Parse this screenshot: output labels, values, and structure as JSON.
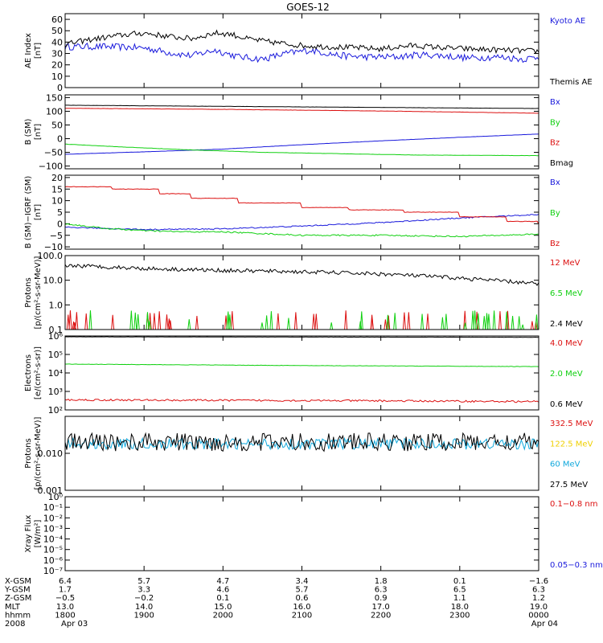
{
  "title": "GOES-12",
  "colors": {
    "black": "#000000",
    "blue": "#1a1adc",
    "red": "#dc1010",
    "green": "#10d010",
    "cyan": "#10a8dc",
    "yellow": "#f0d000"
  },
  "chart_data": [
    {
      "type": "line",
      "name": "ae",
      "ylabel": [
        "AE Index",
        "[nT]"
      ],
      "ylim": [
        0,
        65
      ],
      "yticks": [
        0,
        10,
        20,
        30,
        40,
        50,
        60
      ],
      "yticklabels": [
        "0",
        "10",
        "20",
        "30",
        "40",
        "50",
        "60"
      ],
      "series": [
        {
          "name": "Kyoto AE",
          "color": "#1a1adc",
          "knots": [
            [
              18,
              36
            ],
            [
              18.5,
              36
            ],
            [
              19,
              35
            ],
            [
              19.3,
              31
            ],
            [
              19.6,
              28
            ],
            [
              19.9,
              33
            ],
            [
              20.2,
              27
            ],
            [
              20.5,
              25
            ],
            [
              20.8,
              30
            ],
            [
              21.1,
              33
            ],
            [
              21.5,
              28
            ],
            [
              21.8,
              27
            ],
            [
              22.2,
              27
            ],
            [
              22.5,
              29
            ],
            [
              22.8,
              28
            ],
            [
              23.1,
              26
            ],
            [
              23.5,
              27
            ],
            [
              23.8,
              25
            ],
            [
              24,
              27
            ]
          ],
          "noise": 3
        },
        {
          "name": "Themis AE",
          "color": "#000000",
          "knots": [
            [
              18,
              38
            ],
            [
              18.3,
              42
            ],
            [
              18.7,
              46
            ],
            [
              19,
              48
            ],
            [
              19.3,
              45
            ],
            [
              19.6,
              43
            ],
            [
              19.9,
              48
            ],
            [
              20.1,
              47
            ],
            [
              20.3,
              43
            ],
            [
              20.6,
              40
            ],
            [
              21,
              37
            ],
            [
              21.3,
              36
            ],
            [
              21.7,
              35
            ],
            [
              22,
              34
            ],
            [
              22.4,
              37
            ],
            [
              22.8,
              35
            ],
            [
              23.1,
              34
            ],
            [
              23.5,
              33
            ],
            [
              24,
              32
            ]
          ],
          "noise": 2.5
        }
      ]
    },
    {
      "type": "line",
      "name": "bsm",
      "ylabel": [
        "B (SM)",
        "[nT]"
      ],
      "ylim": [
        -110,
        160
      ],
      "yticks": [
        -100,
        -50,
        0,
        50,
        100,
        150
      ],
      "yticklabels": [
        "−100",
        "−50",
        "0",
        "50",
        "100",
        "150"
      ],
      "series": [
        {
          "name": "Bx",
          "color": "#1a1adc",
          "knots": [
            [
              18,
              -57
            ],
            [
              19,
              -48
            ],
            [
              20,
              -38
            ],
            [
              21,
              -22
            ],
            [
              22,
              -8
            ],
            [
              23,
              5
            ],
            [
              24,
              17
            ]
          ],
          "noise": 0.4
        },
        {
          "name": "By",
          "color": "#10d010",
          "knots": [
            [
              18,
              -20
            ],
            [
              18.7,
              -30
            ],
            [
              19.5,
              -40
            ],
            [
              20.5,
              -50
            ],
            [
              21.5,
              -55
            ],
            [
              22.5,
              -60
            ],
            [
              24,
              -62
            ]
          ],
          "noise": 0.4
        },
        {
          "name": "Bz",
          "color": "#dc1010",
          "knots": [
            [
              18,
              111
            ],
            [
              19,
              109
            ],
            [
              20,
              107
            ],
            [
              21,
              104
            ],
            [
              22,
              101
            ],
            [
              23,
              97
            ],
            [
              24,
              93
            ]
          ],
          "noise": 0.4
        },
        {
          "name": "Bmag",
          "color": "#000000",
          "knots": [
            [
              18,
              122
            ],
            [
              20,
              118
            ],
            [
              22,
              114
            ],
            [
              24,
              110
            ]
          ],
          "noise": 0.3
        }
      ]
    },
    {
      "type": "line",
      "name": "igrf",
      "ylabel": [
        "B (SM)−IGRF (SM)",
        "[nT]"
      ],
      "ylim": [
        -11,
        21
      ],
      "yticks": [
        -10,
        -5,
        0,
        5,
        10,
        15,
        20
      ],
      "yticklabels": [
        "−10",
        "−5",
        "0",
        "5",
        "10",
        "15",
        "20"
      ],
      "series": [
        {
          "name": "Bx",
          "color": "#1a1adc",
          "knots": [
            [
              18,
              -1.5
            ],
            [
              19,
              -2.5
            ],
            [
              20,
              -2.2
            ],
            [
              21,
              -1
            ],
            [
              22,
              0.5
            ],
            [
              23,
              2.5
            ],
            [
              24,
              4
            ]
          ],
          "noise": 0.25
        },
        {
          "name": "By",
          "color": "#10d010",
          "knots": [
            [
              18,
              0
            ],
            [
              18.5,
              -2
            ],
            [
              19,
              -3
            ],
            [
              19.5,
              -3.5
            ],
            [
              20,
              -3.5
            ],
            [
              21,
              -5
            ],
            [
              22,
              -5
            ],
            [
              23,
              -5.5
            ],
            [
              24,
              -4.5
            ]
          ],
          "noise": 0.3
        },
        {
          "name": "Bz",
          "color": "#dc1010",
          "knots": [
            [
              18,
              16
            ],
            [
              18.6,
              15
            ],
            [
              19.2,
              13
            ],
            [
              19.6,
              11
            ],
            [
              20.2,
              9
            ],
            [
              21,
              7
            ],
            [
              21.6,
              6
            ],
            [
              22.3,
              5
            ],
            [
              23,
              3
            ],
            [
              23.6,
              1
            ],
            [
              24,
              0
            ]
          ],
          "step": true,
          "noise": 0.1
        }
      ]
    },
    {
      "type": "line",
      "name": "protons1",
      "scale": "log",
      "ylabel": [
        "Protons",
        "[p/(cm²-s-sr-MeV)]"
      ],
      "ylim": [
        0.1,
        100
      ],
      "yticks": [
        0.1,
        1,
        10,
        100
      ],
      "yticklabels": [
        "0.1",
        "1.0",
        "10.0",
        "100.0"
      ],
      "series": [
        {
          "name": "12 MeV",
          "color": "#dc1010",
          "spikes": true
        },
        {
          "name": "6.5 MeV",
          "color": "#10d010",
          "spikes": true
        },
        {
          "name": "2.4 MeV",
          "color": "#000000",
          "knots": [
            [
              18,
              40
            ],
            [
              19,
              30
            ],
            [
              20,
              25
            ],
            [
              21,
              22
            ],
            [
              22,
              18
            ],
            [
              23,
              12
            ],
            [
              24,
              7
            ]
          ],
          "noise": 0.08
        }
      ]
    },
    {
      "type": "line",
      "name": "electrons",
      "scale": "log",
      "ylabel": [
        "Electrons",
        "[e/(cm²-s-sr)]"
      ],
      "ylim": [
        100,
        1000000
      ],
      "yticks": [
        100,
        1000,
        10000,
        100000,
        1000000
      ],
      "yticklabels": [
        "10²",
        "10³",
        "10⁴",
        "10⁵",
        "10⁶"
      ],
      "series": [
        {
          "name": "4.0 MeV",
          "color": "#dc1010",
          "knots": [
            [
              18,
              350
            ],
            [
              20,
              330
            ],
            [
              22,
              310
            ],
            [
              24,
              280
            ]
          ],
          "noise": 0.05
        },
        {
          "name": "2.0 MeV",
          "color": "#10d010",
          "knots": [
            [
              18,
              30000
            ],
            [
              21,
              25000
            ],
            [
              24,
              22000
            ]
          ],
          "noise": 0.01
        },
        {
          "name": "0.6 MeV",
          "color": "#000000",
          "knots": [
            [
              18,
              900000
            ],
            [
              24,
              850000
            ]
          ],
          "noise": 0.005
        }
      ]
    },
    {
      "type": "line",
      "name": "protons2",
      "scale": "log",
      "ylabel": [
        "Protons",
        "[p/(cm²-s-sr-MeV)]"
      ],
      "ylim": [
        0.001,
        0.1
      ],
      "yticks": [
        0.001,
        0.01,
        0.1
      ],
      "yticklabels": [
        "0.001",
        "0.010",
        ""
      ],
      "series": [
        {
          "name": "332.5 MeV",
          "color": "#dc1010"
        },
        {
          "name": "122.5 MeV",
          "color": "#f0d000"
        },
        {
          "name": "60 MeV",
          "color": "#10a8dc",
          "knots": [
            [
              18,
              0.018
            ],
            [
              24,
              0.018
            ]
          ],
          "noise": 0.15
        },
        {
          "name": "27.5 MeV",
          "color": "#000000",
          "knots": [
            [
              18,
              0.02
            ],
            [
              24,
              0.02
            ]
          ],
          "noise": 0.25
        }
      ]
    },
    {
      "type": "line",
      "name": "xray",
      "scale": "log",
      "ylabel": [
        "Xray Flux",
        "[W/m²]"
      ],
      "ylim": [
        1e-07,
        1
      ],
      "yticks": [
        1e-07,
        1e-06,
        1e-05,
        0.0001,
        0.001,
        0.01,
        0.1,
        1
      ],
      "yticklabels": [
        "10⁻⁷",
        "10⁻⁶",
        "10⁻⁵",
        "10⁻⁴",
        "10⁻³",
        "10⁻²",
        "10⁻¹",
        "10⁰"
      ],
      "series": [
        {
          "name": "0.1−0.8 nm",
          "color": "#dc1010"
        },
        {
          "name": "0.05−0.3 nm",
          "color": "#1a1adc"
        }
      ]
    }
  ],
  "xaxis": {
    "range": [
      "2008-04-03 18:00",
      "2008-04-04 00:00"
    ],
    "rows": [
      {
        "label": "X-GSM",
        "values": [
          "6.4",
          "5.7",
          "4.7",
          "3.4",
          "1.8",
          "0.1",
          "−1.6"
        ]
      },
      {
        "label": "Y-GSM",
        "values": [
          "1.7",
          "3.3",
          "4.6",
          "5.7",
          "6.3",
          "6.5",
          "6.3"
        ]
      },
      {
        "label": "Z-GSM",
        "values": [
          "−0.5",
          "−0.2",
          "0.1",
          "0.6",
          "0.9",
          "1.1",
          "1.2"
        ]
      },
      {
        "label": "MLT",
        "values": [
          "13.0",
          "14.0",
          "15.0",
          "16.0",
          "17.0",
          "18.0",
          "19.0"
        ]
      },
      {
        "label": "hhmm",
        "values": [
          "1800",
          "1900",
          "2000",
          "2100",
          "2200",
          "2300",
          "0000"
        ]
      },
      {
        "label": "2008",
        "values": [
          "Apr 03",
          "",
          "",
          "",
          "",
          "",
          "Apr 04"
        ]
      }
    ]
  }
}
